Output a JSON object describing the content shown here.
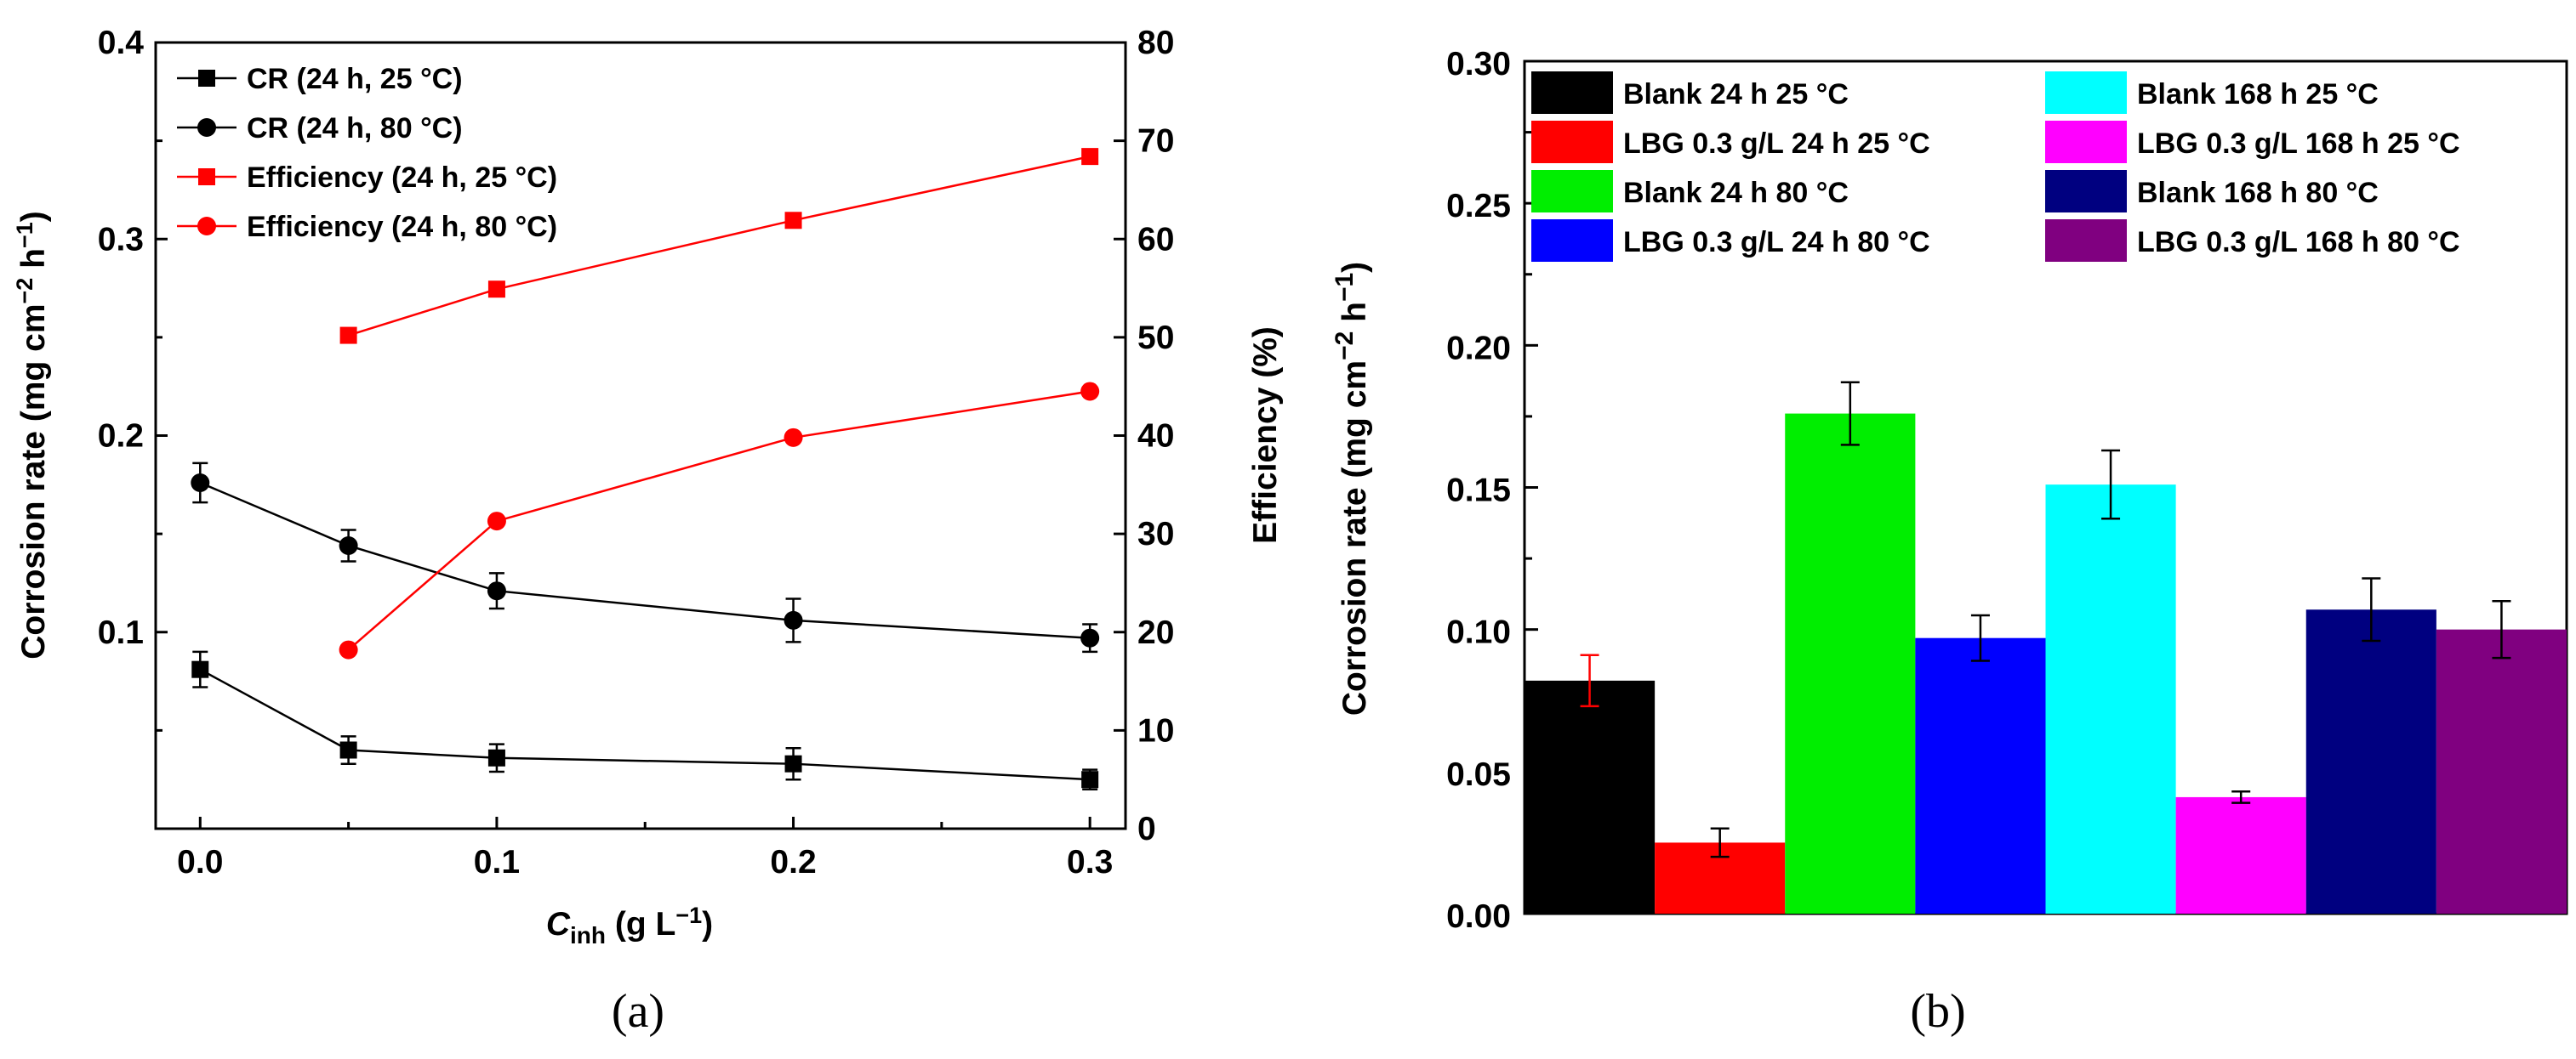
{
  "chart_data": [
    {
      "type": "line",
      "panel_label": "(a)",
      "xlabel_main": "C",
      "xlabel_sub": "inh",
      "xlabel_units": " (g L",
      "xlabel_exp": "−1",
      "xlabel_close": ")",
      "ylabel": "Corrosion rate (mg cm",
      "ylabel_exp1": "−2",
      "ylabel_mid": " h",
      "ylabel_exp2": "−1",
      "ylabel_close": ")",
      "y2label": "Efficiency (%)",
      "xlim": [
        -0.015,
        0.312
      ],
      "ylim": [
        0.0,
        0.4
      ],
      "y2lim": [
        0,
        80
      ],
      "xticks": [
        "0.0",
        "0.1",
        "0.2",
        "0.3"
      ],
      "yticks": [
        "0.1",
        "0.2",
        "0.3",
        "0.4"
      ],
      "y2ticks": [
        "0",
        "10",
        "20",
        "30",
        "40",
        "50",
        "60",
        "70",
        "80"
      ],
      "series": [
        {
          "name": "CR (24 h, 25 °C)",
          "axis": "left",
          "marker": "square",
          "color": "#000000",
          "x": [
            0.0,
            0.05,
            0.1,
            0.2,
            0.3
          ],
          "y": [
            0.081,
            0.04,
            0.036,
            0.033,
            0.025
          ],
          "err": [
            0.009,
            0.007,
            0.007,
            0.008,
            0.005
          ]
        },
        {
          "name": "CR (24 h, 80 °C)",
          "axis": "left",
          "marker": "circle",
          "color": "#000000",
          "x": [
            0.0,
            0.05,
            0.1,
            0.2,
            0.3
          ],
          "y": [
            0.176,
            0.144,
            0.121,
            0.106,
            0.097
          ],
          "err": [
            0.01,
            0.008,
            0.009,
            0.011,
            0.007
          ]
        },
        {
          "name": "Efficiency (24 h, 25 °C)",
          "axis": "right",
          "marker": "square",
          "color": "#ff0000",
          "x": [
            0.05,
            0.1,
            0.2,
            0.3
          ],
          "y": [
            50.2,
            54.9,
            61.9,
            68.4
          ],
          "err": []
        },
        {
          "name": "Efficiency (24 h, 80 °C)",
          "axis": "right",
          "marker": "circle",
          "color": "#ff0000",
          "x": [
            0.05,
            0.1,
            0.2,
            0.3
          ],
          "y": [
            18.2,
            31.3,
            39.8,
            44.5
          ],
          "err": []
        }
      ],
      "legend_position": "top-left"
    },
    {
      "type": "bar",
      "panel_label": "(b)",
      "ylabel": "Corrosion rate (mg cm",
      "ylabel_exp1": "−2",
      "ylabel_mid": " h",
      "ylabel_exp2": "−1",
      "ylabel_close": ")",
      "ylim": [
        0.0,
        0.3
      ],
      "yticks": [
        "0.00",
        "0.05",
        "0.10",
        "0.15",
        "0.20",
        "0.25",
        "0.30"
      ],
      "categories": [
        "Blank 24 h 25 °C",
        "LBG 0.3 g/L 24 h 25 °C",
        "Blank 24 h 80 °C",
        "LBG 0.3 g/L 24 h 80 °C",
        "Blank 168 h 25 °C",
        "LBG 0.3 g/L 168 h 25 °C",
        "Blank 168 h 80 °C",
        "LBG 0.3 g/L 168 h 80 °C"
      ],
      "values": [
        0.082,
        0.025,
        0.176,
        0.097,
        0.151,
        0.041,
        0.107,
        0.1
      ],
      "errors": [
        0.009,
        0.005,
        0.011,
        0.008,
        0.012,
        0.002,
        0.011,
        0.01
      ],
      "colors": [
        "#000000",
        "#ff0000",
        "#00ee00",
        "#0000ff",
        "#00ffff",
        "#ff00ff",
        "#000080",
        "#800080"
      ],
      "error_colors": [
        "#ff0000",
        "#000000",
        "#000000",
        "#000000",
        "#000000",
        "#000000",
        "#000000",
        "#000000"
      ],
      "legend_position": "top"
    }
  ]
}
